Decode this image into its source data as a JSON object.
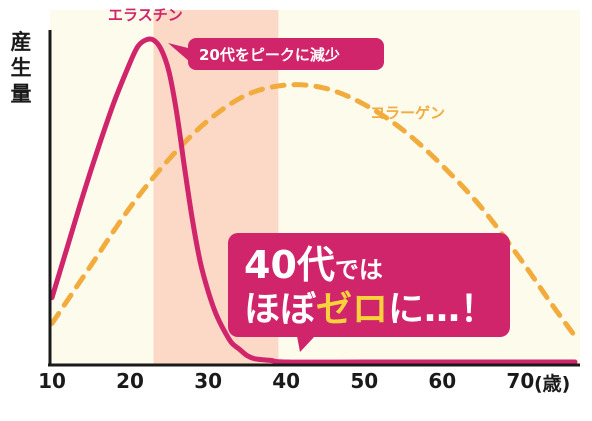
{
  "chart_data": {
    "type": "line",
    "ylabel": "産生量",
    "xunit": "(歳)",
    "x_ticks": [
      10,
      20,
      30,
      40,
      50,
      60,
      70
    ],
    "xlim": [
      10,
      77
    ],
    "ylim": [
      0,
      100
    ],
    "highlight_band": {
      "x_from": 23,
      "x_to": 39
    },
    "series": [
      {
        "name": "エラスチン",
        "style": "solid",
        "color": "#d0246b",
        "points": [
          [
            10,
            20
          ],
          [
            12,
            36
          ],
          [
            14,
            52
          ],
          [
            16,
            67
          ],
          [
            18,
            81
          ],
          [
            20,
            93
          ],
          [
            21,
            98
          ],
          [
            22,
            100
          ],
          [
            23,
            100
          ],
          [
            24,
            97
          ],
          [
            25,
            90
          ],
          [
            26,
            77
          ],
          [
            27,
            60
          ],
          [
            28,
            44
          ],
          [
            29,
            31
          ],
          [
            30,
            22
          ],
          [
            31,
            15
          ],
          [
            32,
            10
          ],
          [
            33,
            6
          ],
          [
            34,
            4
          ],
          [
            35,
            2
          ],
          [
            36,
            1
          ],
          [
            38,
            0.5
          ],
          [
            40,
            0
          ],
          [
            50,
            0
          ],
          [
            60,
            0
          ],
          [
            70,
            0
          ],
          [
            77,
            0
          ]
        ]
      },
      {
        "name": "コラーゲン",
        "style": "dashed",
        "color": "#f2ac3e",
        "points": [
          [
            10,
            12
          ],
          [
            15,
            30
          ],
          [
            20,
            48
          ],
          [
            25,
            63
          ],
          [
            30,
            75
          ],
          [
            35,
            83
          ],
          [
            40,
            86
          ],
          [
            45,
            85
          ],
          [
            50,
            80
          ],
          [
            55,
            72
          ],
          [
            60,
            61
          ],
          [
            65,
            48
          ],
          [
            70,
            32
          ],
          [
            74,
            18
          ],
          [
            77,
            8
          ]
        ]
      }
    ]
  },
  "annotations": {
    "peak_callout": "20代をピークに減少",
    "zero_callout_line1_a": "40代",
    "zero_callout_line1_b": "では",
    "zero_callout_line2_a": "ほぼ",
    "zero_callout_line2_b": "ゼロ",
    "zero_callout_line2_c": "に…！"
  },
  "colors": {
    "accent": "#d0246b",
    "collagen": "#f2ac3e",
    "band": "#fbd9c6",
    "highlight_text": "#f7d23b",
    "background": "#fdfbeb"
  }
}
